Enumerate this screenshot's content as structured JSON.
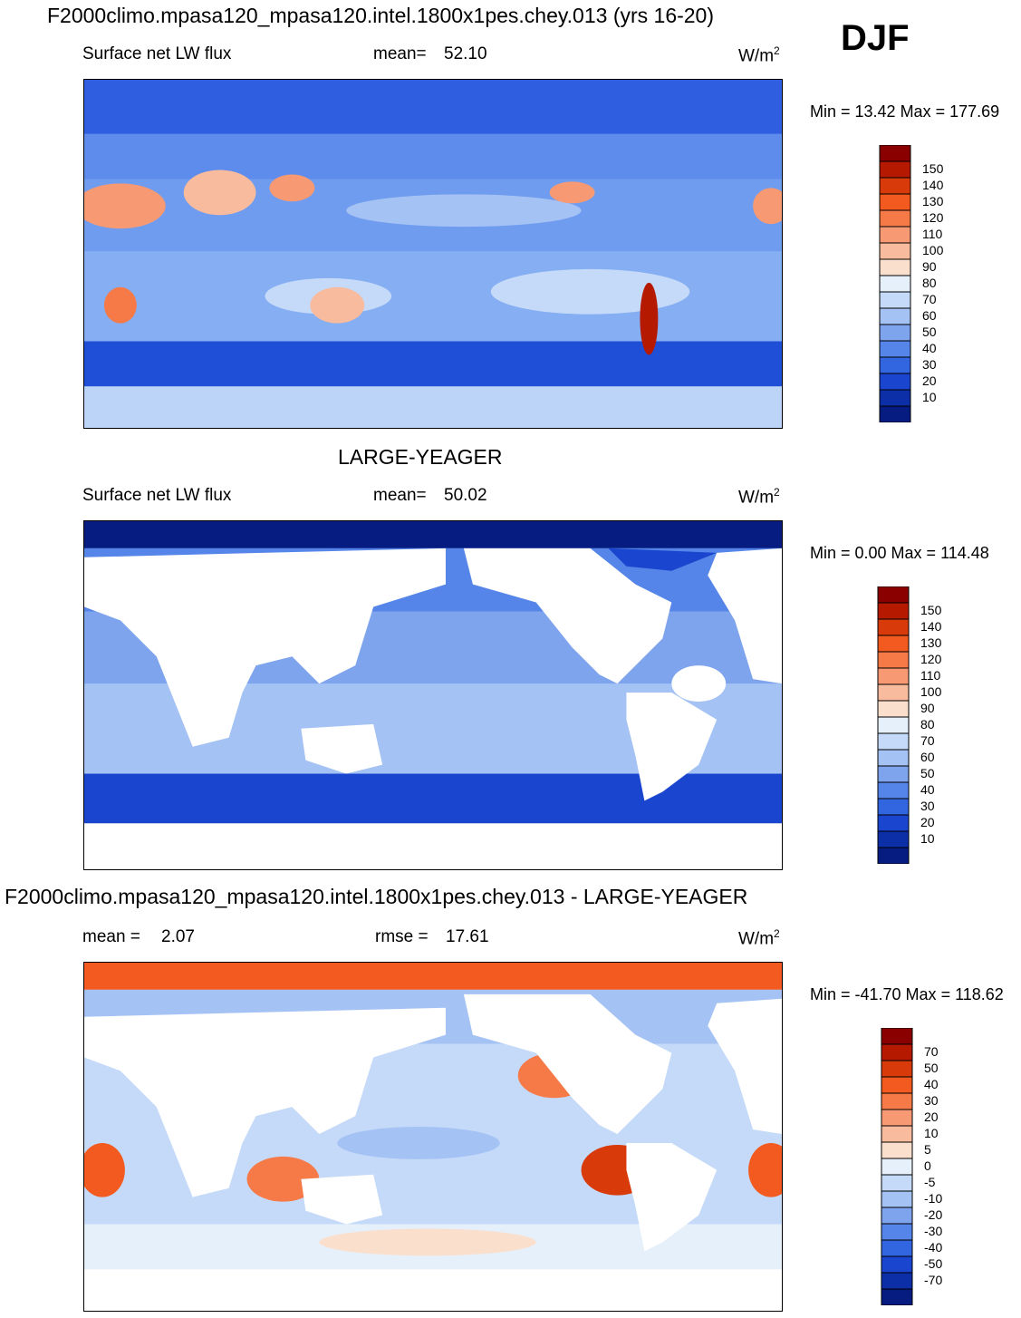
{
  "header": {
    "title": "F2000climo.mpasa120_mpasa120.intel.1800x1pes.chey.013 (yrs 16-20)",
    "season": "DJF"
  },
  "chart_data": [
    {
      "type": "heatmap",
      "variable": "Surface net LW flux",
      "stat_label": "mean=",
      "stat_value": "52.10",
      "units_base": "W/m",
      "units_exp": "2",
      "minmax": "Min =  13.42 Max = 177.69",
      "colorbar": {
        "ticks": [
          "150",
          "140",
          "130",
          "120",
          "110",
          "100",
          "90",
          "80",
          "70",
          "60",
          "50",
          "40",
          "30",
          "20",
          "10"
        ],
        "colors": [
          "#8a0000",
          "#b51a00",
          "#d93a0a",
          "#f25a1f",
          "#f57a48",
          "#f79a73",
          "#f8bb9e",
          "#fbdfcd",
          "#e6f0fb",
          "#c5daf8",
          "#a4c2f4",
          "#7fa4ee",
          "#5585e8",
          "#3265e0",
          "#1a45cf",
          "#0c2fa8",
          "#061c80"
        ]
      }
    },
    {
      "type": "heatmap",
      "heading": "LARGE-YEAGER",
      "variable": "Surface net LW flux",
      "stat_label": "mean=",
      "stat_value": "50.02",
      "units_base": "W/m",
      "units_exp": "2",
      "minmax": "Min =   0.00 Max = 114.48",
      "colorbar": {
        "ticks": [
          "150",
          "140",
          "130",
          "120",
          "110",
          "100",
          "90",
          "80",
          "70",
          "60",
          "50",
          "40",
          "30",
          "20",
          "10"
        ],
        "colors": [
          "#8a0000",
          "#b51a00",
          "#d93a0a",
          "#f25a1f",
          "#f57a48",
          "#f79a73",
          "#f8bb9e",
          "#fbdfcd",
          "#e6f0fb",
          "#c5daf8",
          "#a4c2f4",
          "#7fa4ee",
          "#5585e8",
          "#3265e0",
          "#1a45cf",
          "#0c2fa8",
          "#061c80"
        ]
      }
    },
    {
      "type": "heatmap",
      "heading": "F2000climo.mpasa120_mpasa120.intel.1800x1pes.chey.013 - LARGE-YEAGER",
      "stat_label": "mean =",
      "stat_value": "2.07",
      "stat2_label": "rmse =",
      "stat2_value": "17.61",
      "units_base": "W/m",
      "units_exp": "2",
      "minmax": "Min = -41.70 Max = 118.62",
      "colorbar": {
        "ticks": [
          "70",
          "50",
          "40",
          "30",
          "20",
          "10",
          "5",
          "0",
          "-5",
          "-10",
          "-20",
          "-30",
          "-40",
          "-50",
          "-70"
        ],
        "colors": [
          "#8a0000",
          "#b51a00",
          "#d93a0a",
          "#f25a1f",
          "#f57a48",
          "#f79a73",
          "#f8bb9e",
          "#fbdfcd",
          "#e6f0fb",
          "#c5daf8",
          "#a4c2f4",
          "#7fa4ee",
          "#5585e8",
          "#3265e0",
          "#1a45cf",
          "#0c2fa8",
          "#061c80"
        ]
      }
    }
  ]
}
